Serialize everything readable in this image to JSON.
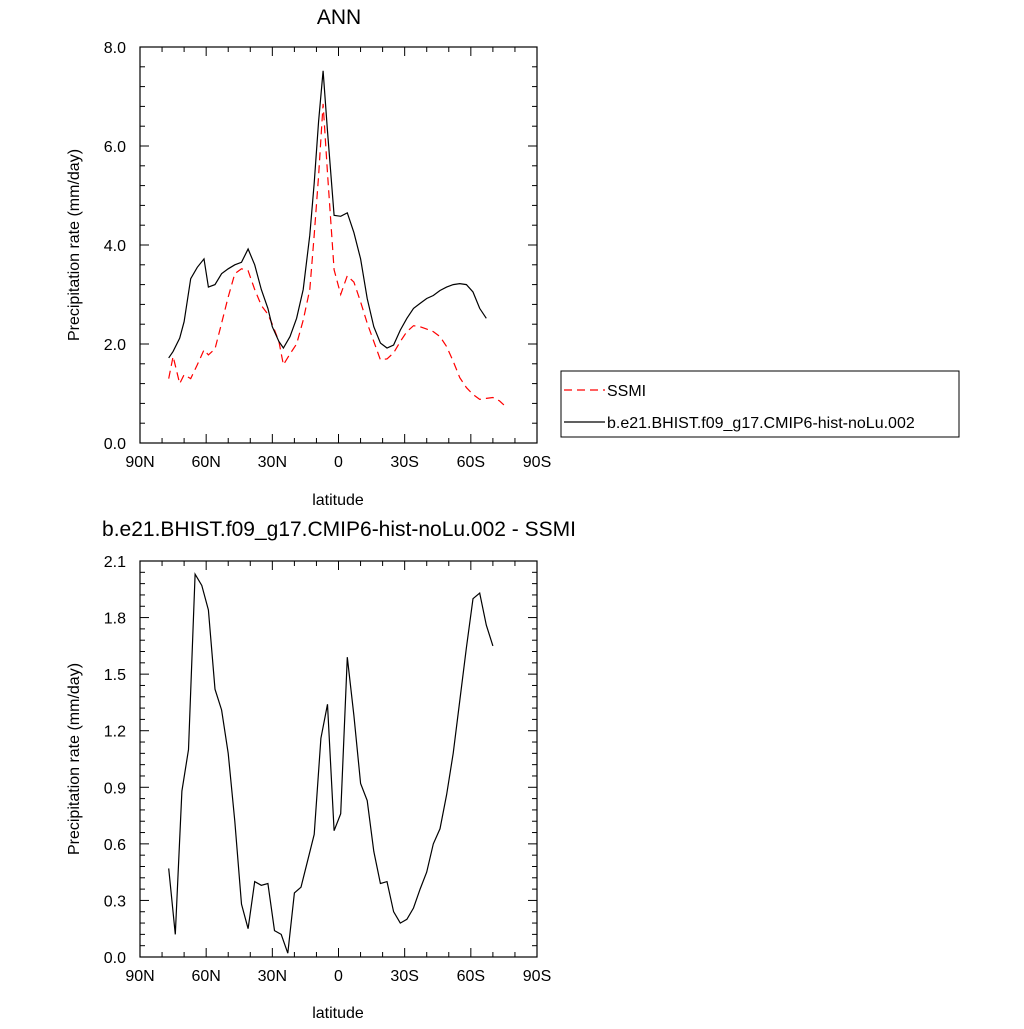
{
  "chart_data": [
    {
      "type": "line",
      "title": "ANN",
      "xlabel": "latitude",
      "ylabel": "Precipitation rate (mm/day)",
      "xlim": [
        90,
        -90
      ],
      "ylim": [
        0,
        8
      ],
      "xticks": [
        {
          "value": 90,
          "label": "90N"
        },
        {
          "value": 60,
          "label": "60N"
        },
        {
          "value": 30,
          "label": "30N"
        },
        {
          "value": 0,
          "label": "0"
        },
        {
          "value": -30,
          "label": "30S"
        },
        {
          "value": -60,
          "label": "60S"
        },
        {
          "value": -90,
          "label": "90S"
        }
      ],
      "yticks": [
        {
          "value": 0,
          "label": "0.0"
        },
        {
          "value": 2,
          "label": "2.0"
        },
        {
          "value": 4,
          "label": "4.0"
        },
        {
          "value": 6,
          "label": "6.0"
        },
        {
          "value": 8,
          "label": "8.0"
        }
      ],
      "legend_position": "right",
      "series": [
        {
          "name": "SSMI",
          "color": "#ff0000",
          "dash": "dashed",
          "points": [
            [
              77,
              1.3
            ],
            [
              75,
              1.75
            ],
            [
              72,
              1.2
            ],
            [
              70,
              1.38
            ],
            [
              67,
              1.3
            ],
            [
              64,
              1.58
            ],
            [
              61,
              1.88
            ],
            [
              59,
              1.78
            ],
            [
              56,
              1.9
            ],
            [
              53,
              2.42
            ],
            [
              50,
              2.95
            ],
            [
              47,
              3.42
            ],
            [
              44,
              3.52
            ],
            [
              41,
              3.48
            ],
            [
              38,
              3.1
            ],
            [
              35,
              2.78
            ],
            [
              32,
              2.6
            ],
            [
              30,
              2.4
            ],
            [
              27,
              2.05
            ],
            [
              25,
              1.58
            ],
            [
              22,
              1.8
            ],
            [
              19,
              2.0
            ],
            [
              16,
              2.48
            ],
            [
              13,
              3.1
            ],
            [
              11,
              4.2
            ],
            [
              9,
              5.4
            ],
            [
              7,
              6.85
            ],
            [
              5,
              5.45
            ],
            [
              2,
              3.5
            ],
            [
              -1,
              3.0
            ],
            [
              -4,
              3.38
            ],
            [
              -7,
              3.25
            ],
            [
              -10,
              2.85
            ],
            [
              -13,
              2.42
            ],
            [
              -16,
              2.05
            ],
            [
              -19,
              1.68
            ],
            [
              -22,
              1.7
            ],
            [
              -25,
              1.82
            ],
            [
              -28,
              2.05
            ],
            [
              -31,
              2.25
            ],
            [
              -34,
              2.37
            ],
            [
              -37,
              2.35
            ],
            [
              -40,
              2.3
            ],
            [
              -43,
              2.25
            ],
            [
              -46,
              2.15
            ],
            [
              -49,
              1.95
            ],
            [
              -52,
              1.65
            ],
            [
              -55,
              1.32
            ],
            [
              -58,
              1.12
            ],
            [
              -61,
              0.98
            ],
            [
              -64,
              0.88
            ],
            [
              -67,
              0.9
            ],
            [
              -70,
              0.92
            ],
            [
              -73,
              0.85
            ],
            [
              -75,
              0.77
            ]
          ]
        },
        {
          "name": "b.e21.BHIST.f09_g17.CMIP6-hist-noLu.002",
          "color": "#000000",
          "dash": "solid",
          "points": [
            [
              77,
              1.72
            ],
            [
              75,
              1.85
            ],
            [
              72,
              2.12
            ],
            [
              70,
              2.45
            ],
            [
              67,
              3.32
            ],
            [
              64,
              3.55
            ],
            [
              61,
              3.72
            ],
            [
              59,
              3.15
            ],
            [
              56,
              3.2
            ],
            [
              53,
              3.42
            ],
            [
              50,
              3.52
            ],
            [
              47,
              3.6
            ],
            [
              44,
              3.65
            ],
            [
              41,
              3.92
            ],
            [
              38,
              3.6
            ],
            [
              35,
              3.1
            ],
            [
              32,
              2.72
            ],
            [
              30,
              2.35
            ],
            [
              27,
              2.05
            ],
            [
              25,
              1.92
            ],
            [
              22,
              2.15
            ],
            [
              19,
              2.52
            ],
            [
              16,
              3.1
            ],
            [
              13,
              4.2
            ],
            [
              11,
              5.25
            ],
            [
              9,
              6.5
            ],
            [
              7,
              7.52
            ],
            [
              5,
              6.3
            ],
            [
              2,
              4.6
            ],
            [
              -1,
              4.58
            ],
            [
              -4,
              4.65
            ],
            [
              -7,
              4.25
            ],
            [
              -10,
              3.72
            ],
            [
              -13,
              2.92
            ],
            [
              -16,
              2.35
            ],
            [
              -19,
              2.02
            ],
            [
              -22,
              1.92
            ],
            [
              -25,
              1.98
            ],
            [
              -28,
              2.28
            ],
            [
              -31,
              2.52
            ],
            [
              -34,
              2.72
            ],
            [
              -37,
              2.82
            ],
            [
              -40,
              2.92
            ],
            [
              -43,
              2.98
            ],
            [
              -46,
              3.08
            ],
            [
              -49,
              3.15
            ],
            [
              -52,
              3.2
            ],
            [
              -55,
              3.22
            ],
            [
              -58,
              3.2
            ],
            [
              -61,
              3.05
            ],
            [
              -64,
              2.72
            ],
            [
              -67,
              2.52
            ]
          ]
        }
      ]
    },
    {
      "type": "line",
      "title": "b.e21.BHIST.f09_g17.CMIP6-hist-noLu.002 - SSMI",
      "xlabel": "latitude",
      "ylabel": "Precipitation rate (mm/day)",
      "xlim": [
        90,
        -90
      ],
      "ylim": [
        0,
        2.1
      ],
      "xticks": [
        {
          "value": 90,
          "label": "90N"
        },
        {
          "value": 60,
          "label": "60N"
        },
        {
          "value": 30,
          "label": "30N"
        },
        {
          "value": 0,
          "label": "0"
        },
        {
          "value": -30,
          "label": "30S"
        },
        {
          "value": -60,
          "label": "60S"
        },
        {
          "value": -90,
          "label": "90S"
        }
      ],
      "yticks": [
        {
          "value": 0,
          "label": "0.0"
        },
        {
          "value": 0.3,
          "label": "0.3"
        },
        {
          "value": 0.6,
          "label": "0.6"
        },
        {
          "value": 0.9,
          "label": "0.9"
        },
        {
          "value": 1.2,
          "label": "1.2"
        },
        {
          "value": 1.5,
          "label": "1.5"
        },
        {
          "value": 1.8,
          "label": "1.8"
        },
        {
          "value": 2.1,
          "label": "2.1"
        }
      ],
      "series": [
        {
          "color": "#000000",
          "dash": "solid",
          "points": [
            [
              77,
              0.47
            ],
            [
              74,
              0.12
            ],
            [
              71,
              0.88
            ],
            [
              68,
              1.1
            ],
            [
              65,
              2.03
            ],
            [
              62,
              1.97
            ],
            [
              59,
              1.84
            ],
            [
              56,
              1.42
            ],
            [
              53,
              1.31
            ],
            [
              50,
              1.08
            ],
            [
              47,
              0.72
            ],
            [
              44,
              0.28
            ],
            [
              41,
              0.15
            ],
            [
              38,
              0.4
            ],
            [
              35,
              0.38
            ],
            [
              32,
              0.39
            ],
            [
              29,
              0.14
            ],
            [
              26,
              0.12
            ],
            [
              23,
              0.02
            ],
            [
              20,
              0.34
            ],
            [
              17,
              0.37
            ],
            [
              14,
              0.51
            ],
            [
              11,
              0.65
            ],
            [
              8,
              1.16
            ],
            [
              5,
              1.34
            ],
            [
              2,
              0.67
            ],
            [
              -1,
              0.76
            ],
            [
              -4,
              1.59
            ],
            [
              -7,
              1.28
            ],
            [
              -10,
              0.92
            ],
            [
              -13,
              0.83
            ],
            [
              -16,
              0.56
            ],
            [
              -19,
              0.39
            ],
            [
              -22,
              0.4
            ],
            [
              -25,
              0.24
            ],
            [
              -28,
              0.18
            ],
            [
              -31,
              0.2
            ],
            [
              -34,
              0.26
            ],
            [
              -37,
              0.36
            ],
            [
              -40,
              0.45
            ],
            [
              -43,
              0.6
            ],
            [
              -46,
              0.68
            ],
            [
              -49,
              0.86
            ],
            [
              -52,
              1.08
            ],
            [
              -55,
              1.36
            ],
            [
              -58,
              1.64
            ],
            [
              -61,
              1.9
            ],
            [
              -64,
              1.93
            ],
            [
              -67,
              1.76
            ],
            [
              -70,
              1.65
            ]
          ]
        }
      ]
    }
  ]
}
